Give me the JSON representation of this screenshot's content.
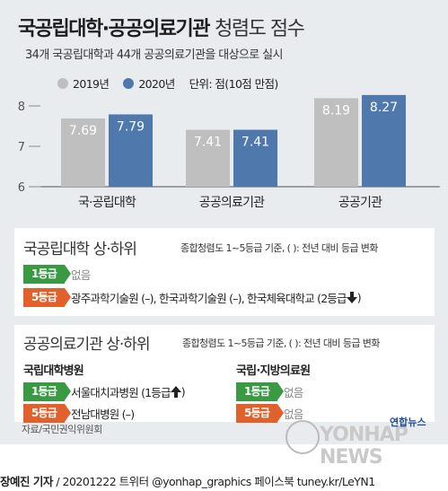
{
  "header": {
    "title_bold": "국공립대학·공공의료기관",
    "title_light": "청렴도 점수",
    "subtitle": "34개 국공립대학과 44개 공공의료기관을 대상으로 실시"
  },
  "chart_data": {
    "type": "bar",
    "categories": [
      "국·공립대학",
      "공공의료기관",
      "공공기관"
    ],
    "series": [
      {
        "name": "2019년",
        "values": [
          7.69,
          7.41,
          8.19
        ],
        "labels": [
          "7.69",
          "7.41",
          "8.19"
        ]
      },
      {
        "name": "2020년",
        "values": [
          7.79,
          7.41,
          8.27
        ],
        "labels": [
          "7.79",
          "7.41",
          "8.27"
        ]
      }
    ],
    "yticks": [
      "6",
      "7",
      "8"
    ],
    "ylim": [
      6,
      8.5
    ],
    "unit_note": "단위: 점(10점 만점)",
    "colors": {
      "2019": "#bfbfbf",
      "2020": "#4f79ad"
    }
  },
  "universities": {
    "title": "국공립대학 상·하위",
    "note": "종합청렴도 1~5등급 기준, ( ): 전년 대비 등급 변화",
    "top_badge": "1등급",
    "top_value": "없음",
    "bottom_badge": "5등급",
    "bottom_value": "광주과학기술원 (–), 한국과학기술원 (–), 한국체육대학교 (2등급",
    "bottom_arrow": "down-arrow-icon"
  },
  "medical": {
    "title": "공공의료기관 상·하위",
    "note": "종합청렴도 1~5등급 기준, ( ): 전년 대비 등급 변화",
    "left_heading": "국립대학병원",
    "left_top_badge": "1등급",
    "left_top_value": "서울대치과병원 (1등급",
    "left_top_arrow": "up-arrow-icon",
    "left_bottom_badge": "5등급",
    "left_bottom_value": "전남대병원 (–)",
    "right_heading": "국립·지방의료원",
    "right_top_badge": "1등급",
    "right_top_value": "없음",
    "right_bottom_badge": "5등급",
    "right_bottom_value": "없음"
  },
  "source": "자료/국민권익위원회",
  "logo": {
    "korean": "연합뉴스",
    "english": "YONHAP NEWS"
  },
  "footer": {
    "reporter": "장예진 기자",
    "rest": " / 20201222 트위터 @yonhap_graphics  페이스북 tuney.kr/LeYN1"
  }
}
